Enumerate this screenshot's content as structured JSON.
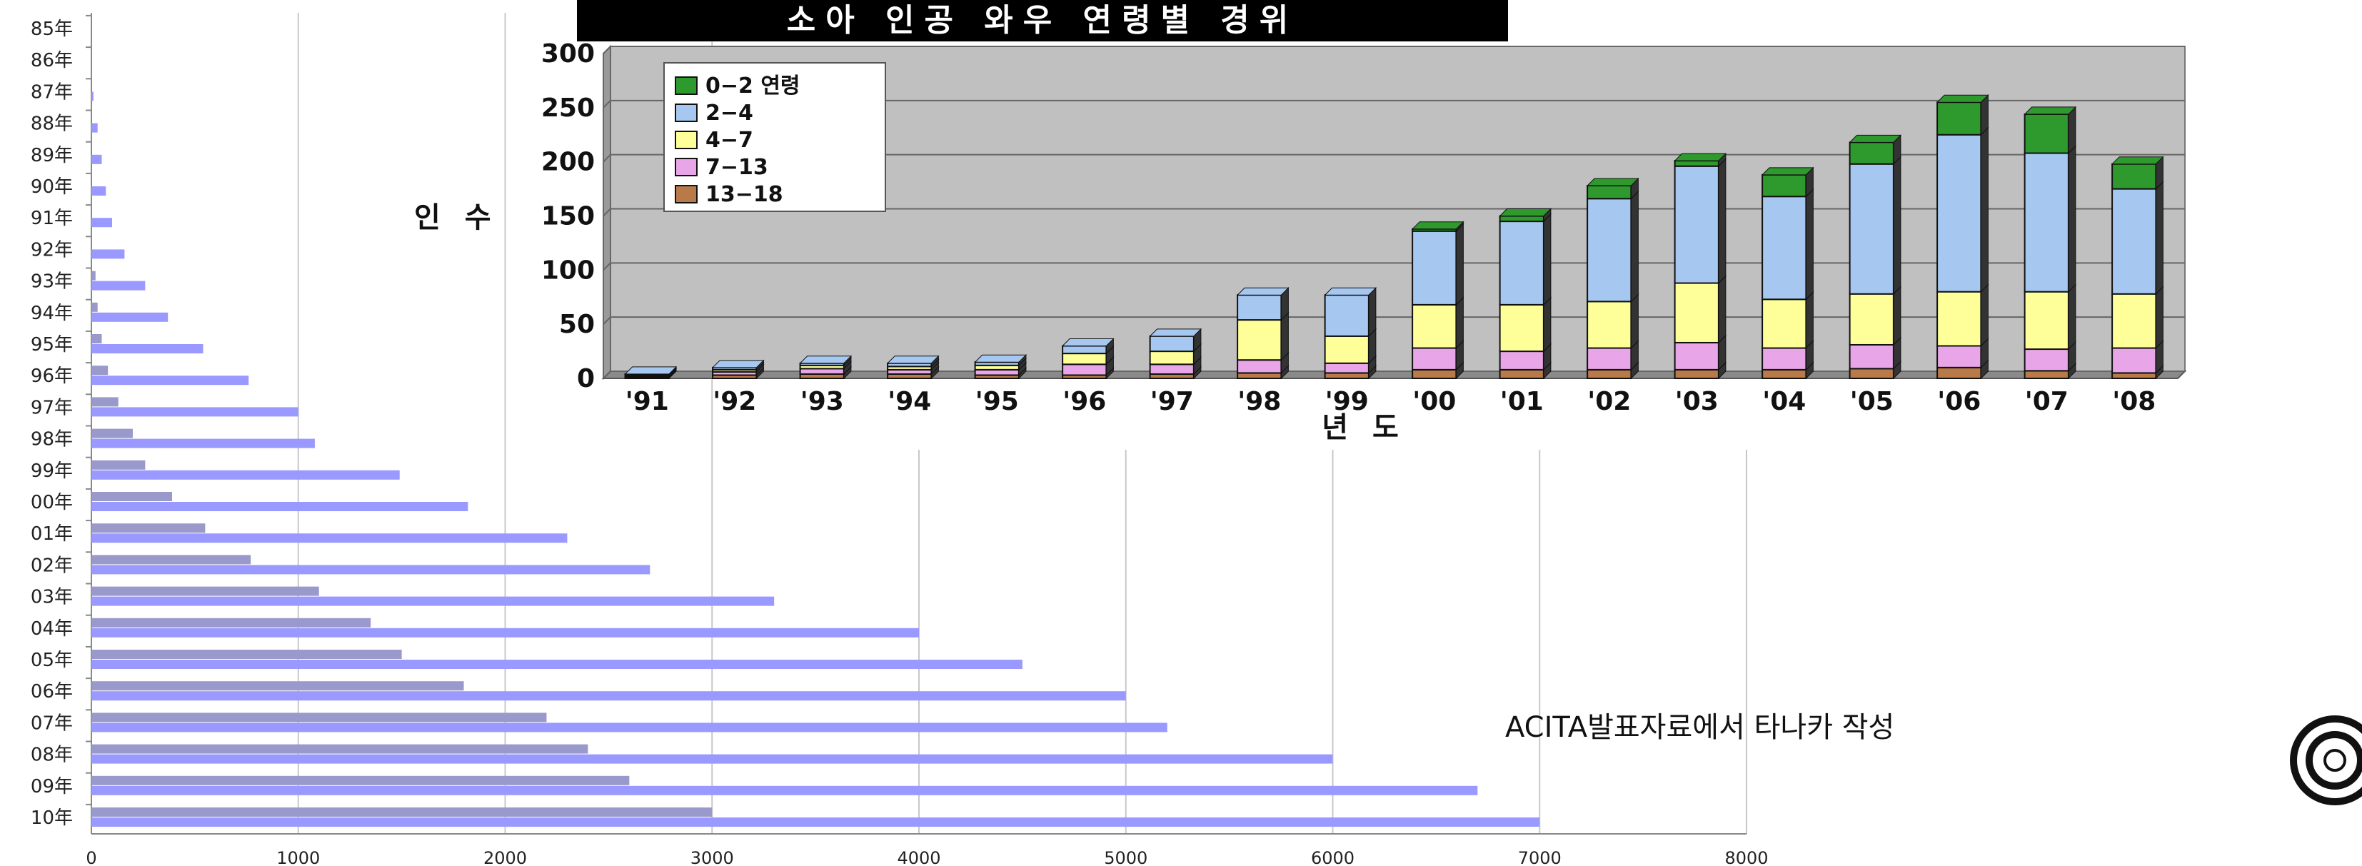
{
  "chart_data": [
    {
      "type": "bar",
      "orientation": "horizontal",
      "categories": [
        "85年",
        "86年",
        "87年",
        "88年",
        "89年",
        "90年",
        "91年",
        "92年",
        "93年",
        "94年",
        "95年",
        "96年",
        "97年",
        "98年",
        "99年",
        "00年",
        "01年",
        "02年",
        "03年",
        "04年",
        "05年",
        "06年",
        "07年",
        "08年",
        "09年",
        "10年"
      ],
      "series": [
        {
          "values": [
            0,
            0,
            0,
            0,
            0,
            0,
            0,
            0,
            20,
            30,
            50,
            80,
            130,
            200,
            260,
            390,
            550,
            770,
            1100,
            1350,
            1500,
            1800,
            2200,
            2400,
            2600,
            3000
          ]
        },
        {
          "values": [
            0,
            0,
            10,
            30,
            50,
            70,
            100,
            160,
            260,
            370,
            540,
            760,
            1000,
            1080,
            1490,
            1820,
            2300,
            2700,
            3300,
            4000,
            4500,
            5000,
            5200,
            6000,
            6700,
            7000
          ]
        }
      ],
      "xlim": [
        0,
        8000
      ],
      "xticks": [
        0,
        1000,
        2000,
        3000,
        4000,
        5000,
        6000,
        7000,
        8000
      ],
      "grid": true,
      "colors": {
        "series1": "#9999cc",
        "series2": "#9999ff"
      }
    },
    {
      "type": "bar",
      "stacked": true,
      "title": "소아 인공 와우 연령별 경위",
      "ylabel": "인 수",
      "xlabel": "년 도",
      "categories": [
        "'91",
        "'92",
        "'93",
        "'94",
        "'95",
        "'96",
        "'97",
        "'98",
        "'99",
        "'00",
        "'01",
        "'02",
        "'03",
        "'04",
        "'05",
        "'06",
        "'07",
        "'08"
      ],
      "ylim": [
        0,
        300
      ],
      "yticks": [
        0,
        50,
        100,
        150,
        200,
        250,
        300
      ],
      "legend_position": "top-left",
      "series": [
        {
          "name": "13−18",
          "color": "#b97a4a",
          "values": [
            1,
            3,
            4,
            4,
            3,
            3,
            4,
            5,
            5,
            8,
            8,
            8,
            8,
            8,
            9,
            10,
            7,
            5
          ]
        },
        {
          "name": "7−13",
          "color": "#e8a6e8",
          "values": [
            1,
            3,
            5,
            4,
            5,
            10,
            9,
            12,
            9,
            20,
            17,
            20,
            25,
            20,
            22,
            20,
            20,
            23
          ]
        },
        {
          "name": "4−7",
          "color": "#ffff99",
          "values": [
            1,
            2,
            3,
            3,
            4,
            10,
            12,
            37,
            25,
            40,
            43,
            43,
            55,
            45,
            47,
            50,
            53,
            50
          ]
        },
        {
          "name": "2−4",
          "color": "#a6c8f0",
          "values": [
            1,
            2,
            2,
            3,
            3,
            7,
            14,
            23,
            38,
            68,
            77,
            95,
            108,
            95,
            120,
            145,
            128,
            97
          ]
        },
        {
          "name": "0−2 연령",
          "color": "#2e9a2e",
          "values": [
            0,
            0,
            0,
            0,
            0,
            0,
            0,
            0,
            0,
            2,
            5,
            12,
            5,
            20,
            20,
            30,
            36,
            23
          ]
        }
      ],
      "grid": true
    }
  ],
  "note": "ACITA발표자료에서 타나카 작성",
  "logo": "target-circle-logo"
}
